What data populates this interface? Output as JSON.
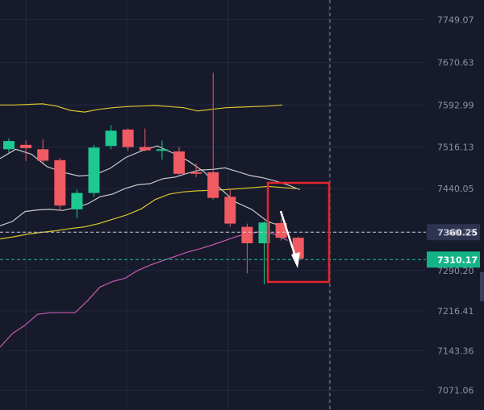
{
  "chart_data": {
    "type": "candlestick",
    "price_axis": {
      "ticks": [
        "7749.07",
        "7670.63",
        "7592.99",
        "7516.13",
        "7440.05",
        "7360.25",
        "7290.20",
        "7216.41",
        "7143.36",
        "7071.06"
      ],
      "range": [
        7035,
        7785
      ]
    },
    "candles": [
      {
        "open": 7512,
        "close": 7527,
        "high": 7532,
        "low": 7505
      },
      {
        "open": 7520,
        "close": 7514,
        "high": 7528,
        "low": 7490
      },
      {
        "open": 7512,
        "close": 7491,
        "high": 7530,
        "low": 7484
      },
      {
        "open": 7492,
        "close": 7409,
        "high": 7496,
        "low": 7400
      },
      {
        "open": 7402,
        "close": 7432,
        "high": 7438,
        "low": 7386
      },
      {
        "open": 7432,
        "close": 7515,
        "high": 7520,
        "low": 7425
      },
      {
        "open": 7518,
        "close": 7546,
        "high": 7556,
        "low": 7512
      },
      {
        "open": 7548,
        "close": 7516,
        "high": 7550,
        "low": 7509
      },
      {
        "open": 7516,
        "close": 7510,
        "high": 7550,
        "low": 7508
      },
      {
        "open": 7510,
        "close": 7512,
        "high": 7528,
        "low": 7493
      },
      {
        "open": 7508,
        "close": 7467,
        "high": 7516,
        "low": 7464
      },
      {
        "open": 7470,
        "close": 7468,
        "high": 7486,
        "low": 7461
      },
      {
        "open": 7470,
        "close": 7423,
        "high": 7652,
        "low": 7420
      },
      {
        "open": 7425,
        "close": 7376,
        "high": 7440,
        "low": 7370
      },
      {
        "open": 7370,
        "close": 7340,
        "high": 7376,
        "low": 7285
      },
      {
        "open": 7340,
        "close": 7378,
        "high": 7380,
        "low": 7265
      },
      {
        "open": 7377,
        "close": 7350,
        "high": 7385,
        "low": 7345
      },
      {
        "open": 7350,
        "close": 7312,
        "high": 7352,
        "low": 7302
      }
    ],
    "indicators": [
      {
        "color": "#d9c52c",
        "values": [
          7593,
          7593,
          7594,
          7595,
          7591,
          7583,
          7580,
          7585,
          7588,
          7590,
          7591,
          7592,
          7590,
          7588,
          7582,
          7585,
          7588,
          7589,
          7590,
          7591,
          7593
        ]
      },
      {
        "color": "#c8c8cc",
        "values": [
          7372,
          7380,
          7398,
          7401,
          7402,
          7400,
          7405,
          7412,
          7425,
          7430,
          7440,
          7447,
          7449,
          7458,
          7461,
          7468,
          7474,
          7475,
          7478,
          7471,
          7464,
          7460,
          7454,
          7447,
          7438
        ]
      },
      {
        "color": "#d9c52c",
        "values": [
          7348,
          7352,
          7357,
          7360,
          7363,
          7367,
          7370,
          7376,
          7384,
          7392,
          7403,
          7420,
          7430,
          7434,
          7436,
          7437,
          7438,
          7440,
          7442,
          7444,
          7442,
          7440
        ]
      },
      {
        "color": "#c8c8cc",
        "values": [
          7495,
          7512,
          7503,
          7480,
          7470,
          7463,
          7465,
          7477,
          7497,
          7509,
          7518,
          7505,
          7490,
          7470,
          7440,
          7415,
          7402,
          7380,
          7370
        ]
      },
      {
        "color": "#c85ab0",
        "values": [
          7150,
          7175,
          7190,
          7210,
          7213,
          7213,
          7213,
          7235,
          7260,
          7270,
          7276,
          7290,
          7300,
          7308,
          7316,
          7324,
          7330,
          7337,
          7345,
          7353,
          7358,
          7362,
          7356,
          7345
        ]
      }
    ],
    "price_lines": [
      {
        "value": "7360.25",
        "style": "dashed",
        "color": "#c8c8d8",
        "badge_color": "#2e3350",
        "badge_text_color": "#ffffff"
      },
      {
        "value": "7310.17",
        "style": "dashed",
        "color": "#1dbe9a",
        "badge_color": "#15b486",
        "badge_text_color": "#ffffff"
      }
    ],
    "annotation": {
      "type": "box-with-downward-arrow",
      "color": "#e8242c",
      "arrow_color": "#ffffff"
    },
    "colors": {
      "up": "#1ec991",
      "down": "#f05a62",
      "grid": "#232840",
      "background": "#161a2b"
    },
    "grid": true,
    "crosshair": true
  }
}
